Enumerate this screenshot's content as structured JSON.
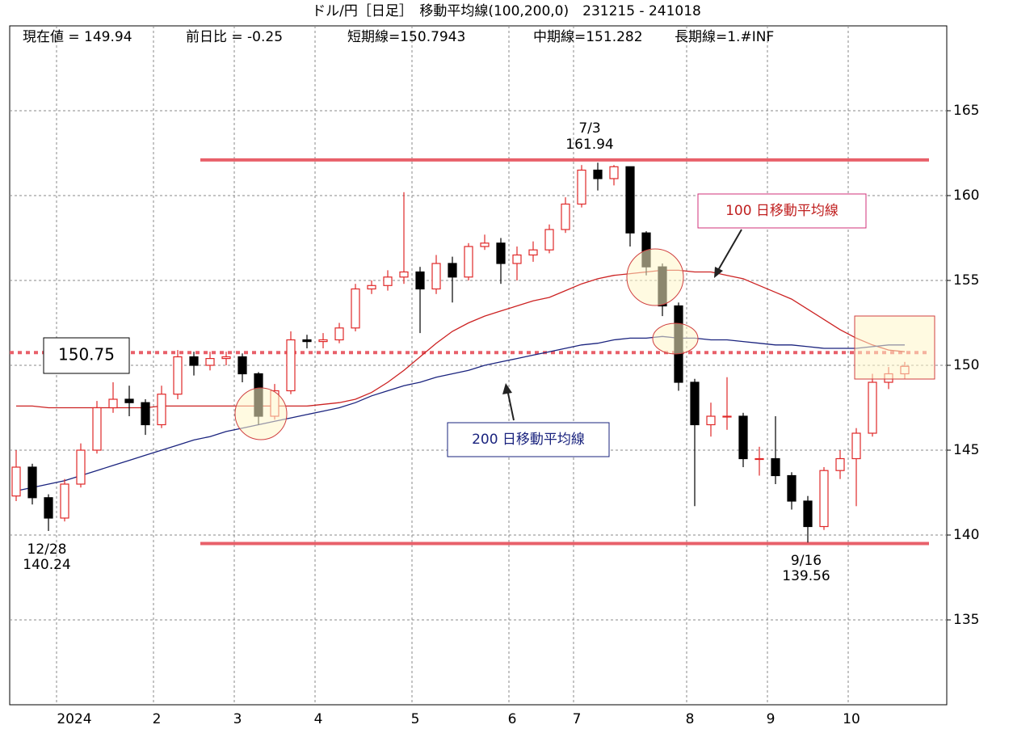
{
  "chart_data": {
    "type": "candlestick",
    "title": "ドル/円［日足］　移動平均線(100,200,0)　231215 - 241018",
    "info": [
      "現在値 = 149.94",
      "前日比 = -0.25",
      "短期線=150.7943",
      "中期線=151.282",
      "長期線=1.#INF"
    ],
    "categories": [
      null,
      null,
      null,
      "2024",
      null,
      null,
      null,
      null,
      null,
      "2",
      null,
      null,
      null,
      null,
      "3",
      null,
      null,
      null,
      null,
      "4",
      null,
      null,
      null,
      null,
      null,
      "5",
      null,
      null,
      null,
      null,
      null,
      "6",
      null,
      null,
      null,
      "7",
      null,
      null,
      null,
      null,
      null,
      null,
      "8",
      null,
      null,
      null,
      null,
      "9",
      null,
      null,
      null,
      null,
      "10",
      null,
      null,
      null
    ],
    "open": [
      142.3,
      144.0,
      142.2,
      141.0,
      143.0,
      145.0,
      147.5,
      148.0,
      147.8,
      146.5,
      148.3,
      150.5,
      150.0,
      150.4,
      150.5,
      149.5,
      147.0,
      148.5,
      151.5,
      151.4,
      151.5,
      152.2,
      154.5,
      154.7,
      155.2,
      155.5,
      154.5,
      156.0,
      155.2,
      157.0,
      157.2,
      156.0,
      156.5,
      156.8,
      158.0,
      159.5,
      161.5,
      161.0,
      161.7,
      157.8,
      155.8,
      153.5,
      149.0,
      146.5,
      147.0,
      147.0,
      144.5,
      144.5,
      143.5,
      142.0,
      140.5,
      143.8,
      144.5,
      146.0,
      149.0,
      149.5
    ],
    "high": [
      145.0,
      144.2,
      142.4,
      143.3,
      145.4,
      147.9,
      149.0,
      148.8,
      148.0,
      148.8,
      150.9,
      150.8,
      150.8,
      150.8,
      150.7,
      149.6,
      148.9,
      152.0,
      151.8,
      151.9,
      152.5,
      154.8,
      155.0,
      155.6,
      160.2,
      155.8,
      156.5,
      156.4,
      157.2,
      157.7,
      157.5,
      157.0,
      157.3,
      158.3,
      159.9,
      161.8,
      161.94,
      161.8,
      161.6,
      157.9,
      156.0,
      153.7,
      149.2,
      147.8,
      149.3,
      147.2,
      145.2,
      147.0,
      143.7,
      142.3,
      144.0,
      145.0,
      146.3,
      149.5,
      149.9,
      150.2
    ],
    "low": [
      142.0,
      141.8,
      140.24,
      140.8,
      142.8,
      144.8,
      147.2,
      147.0,
      145.9,
      146.3,
      148.0,
      149.4,
      149.7,
      150.0,
      149.0,
      146.5,
      146.8,
      148.3,
      151.0,
      151.0,
      151.3,
      152.0,
      154.2,
      154.4,
      154.8,
      151.9,
      154.2,
      153.7,
      155.0,
      156.8,
      154.8,
      155.0,
      156.1,
      156.6,
      157.8,
      159.3,
      160.3,
      160.6,
      157.0,
      155.3,
      152.9,
      148.5,
      141.7,
      145.8,
      146.2,
      144.0,
      143.5,
      143.0,
      141.5,
      139.56,
      140.3,
      143.3,
      141.7,
      145.8,
      148.6,
      149.2
    ],
    "close": [
      144.0,
      142.2,
      141.0,
      143.0,
      145.0,
      147.5,
      148.0,
      147.8,
      146.5,
      148.3,
      150.5,
      150.0,
      150.4,
      150.5,
      149.5,
      147.0,
      148.5,
      151.5,
      151.4,
      151.5,
      152.2,
      154.5,
      154.7,
      155.2,
      155.5,
      154.5,
      156.0,
      155.2,
      157.0,
      157.2,
      156.0,
      156.5,
      156.8,
      158.0,
      159.5,
      161.5,
      161.0,
      161.7,
      157.8,
      155.8,
      153.5,
      149.0,
      146.5,
      147.0,
      147.0,
      144.5,
      144.5,
      143.5,
      142.0,
      140.5,
      143.8,
      144.5,
      146.0,
      149.0,
      149.5,
      149.94
    ],
    "up_color": "#e02828",
    "down_color": "#000000",
    "series": [
      {
        "name": "100 日移動平均線",
        "color": "#cc2222",
        "values": [
          147.6,
          147.6,
          147.5,
          147.5,
          147.5,
          147.5,
          147.5,
          147.5,
          147.5,
          147.6,
          147.6,
          147.6,
          147.6,
          147.6,
          147.6,
          147.6,
          147.6,
          147.6,
          147.6,
          147.7,
          147.8,
          148.0,
          148.4,
          149.0,
          149.7,
          150.5,
          151.3,
          152.0,
          152.5,
          152.9,
          153.2,
          153.5,
          153.8,
          154.0,
          154.4,
          154.8,
          155.1,
          155.3,
          155.4,
          155.5,
          155.6,
          155.6,
          155.5,
          155.5,
          155.3,
          155.1,
          154.7,
          154.3,
          153.9,
          153.3,
          152.7,
          152.1,
          151.6,
          151.2,
          150.9,
          150.8
        ]
      },
      {
        "name": "200 日移動平均線",
        "color": "#1a237e",
        "values": [
          142.6,
          142.8,
          143.0,
          143.2,
          143.5,
          143.8,
          144.1,
          144.4,
          144.7,
          145.0,
          145.3,
          145.6,
          145.8,
          146.1,
          146.3,
          146.5,
          146.7,
          146.9,
          147.1,
          147.3,
          147.5,
          147.8,
          148.2,
          148.5,
          148.8,
          149.0,
          149.3,
          149.5,
          149.7,
          150.0,
          150.2,
          150.4,
          150.6,
          150.8,
          151.0,
          151.2,
          151.3,
          151.5,
          151.6,
          151.6,
          151.7,
          151.6,
          151.6,
          151.5,
          151.5,
          151.4,
          151.3,
          151.2,
          151.2,
          151.1,
          151.0,
          151.0,
          151.0,
          151.1,
          151.2,
          151.2
        ]
      }
    ],
    "hlines": [
      {
        "value": 162.1,
        "color": "#e8606a"
      },
      {
        "value": 139.5,
        "color": "#e8606a"
      }
    ],
    "reference_line": {
      "value": 150.75,
      "color": "#e8606a"
    },
    "annotations": [
      {
        "date": "7/3",
        "value": 161.94
      },
      {
        "date": "12/28",
        "value": 140.24
      },
      {
        "date": "9/16",
        "value": 139.56
      }
    ],
    "ylim": [
      130,
      170
    ],
    "yticks": [
      135,
      140,
      145,
      150,
      155,
      160,
      165
    ],
    "grid": true
  }
}
